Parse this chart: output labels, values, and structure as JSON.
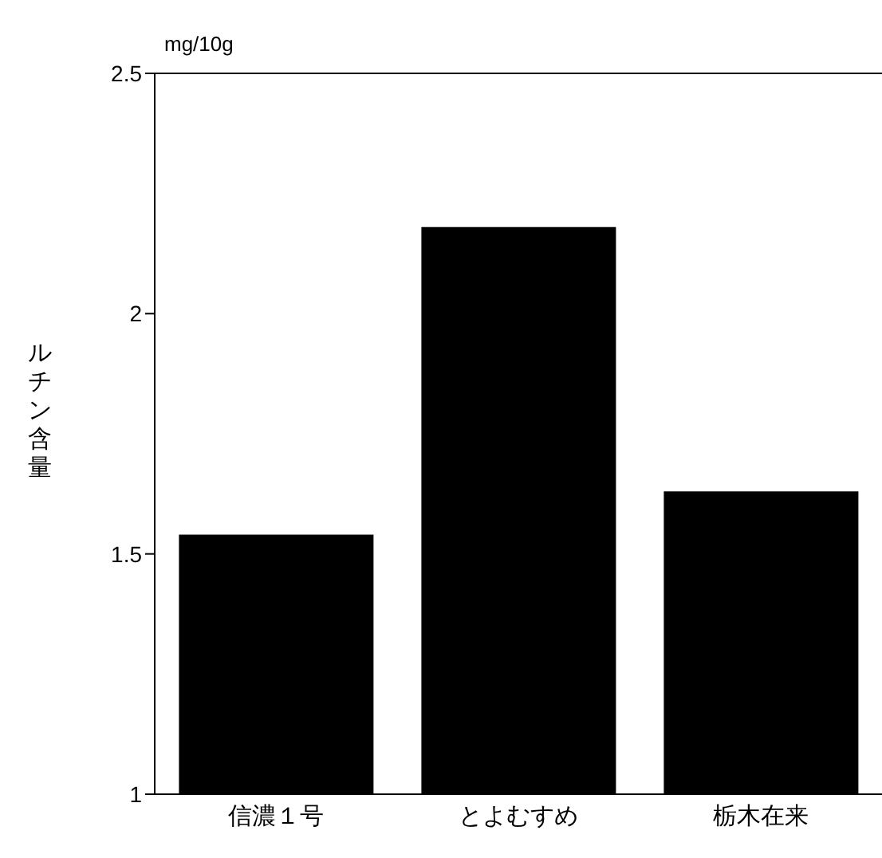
{
  "chart_data": {
    "type": "bar",
    "ylabel": "ルチン含量",
    "annotations": [
      "mg/10g"
    ],
    "categories": [
      "信濃１号",
      "とよむすめ",
      "栃木在来"
    ],
    "values": [
      1.54,
      2.18,
      1.63
    ],
    "color": "#000000",
    "ylim": [
      1,
      2.5
    ],
    "yticks": [
      1,
      1.5,
      2,
      2.5
    ]
  }
}
